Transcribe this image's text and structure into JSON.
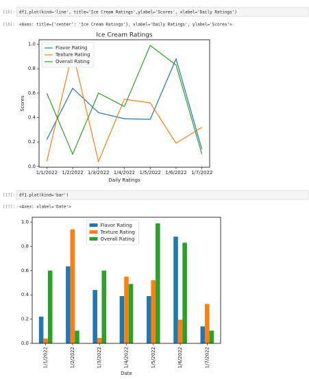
{
  "cells": [
    {
      "prompt": "[16]:",
      "code": "df1.plot(kind='line', title='Ice Cream Ratings',ylabel='Scores', xlabel='Daily Ratings')",
      "output_prompt": "[16]:",
      "output": "<Axes: title={'center': 'Ice Cream Ratings'}, xlabel='Daily Ratings', ylabel='Scores'>"
    },
    {
      "prompt": "[17]:",
      "code": "df1.plot(kind='bar')",
      "output_prompt": "[17]:",
      "output": "<Axes: xlabel='Date'>"
    }
  ],
  "chart_data": [
    {
      "type": "line",
      "title": "Ice Cream Ratings",
      "xlabel": "Daily Ratings",
      "ylabel": "Scores",
      "categories": [
        "1/1/2022",
        "1/2/2022",
        "1/3/2022",
        "1/4/2022",
        "1/5/2022",
        "1/6/2022",
        "1/7/2022"
      ],
      "series": [
        {
          "name": "Flavor Rating",
          "color": "#1f77b4",
          "values": [
            0.22,
            0.64,
            0.44,
            0.39,
            0.385,
            0.88,
            0.14
          ]
        },
        {
          "name": "Texture Rating",
          "color": "#ff7f0e",
          "values": [
            0.04,
            0.94,
            0.04,
            0.55,
            0.52,
            0.19,
            0.32
          ]
        },
        {
          "name": "Overall Rating",
          "color": "#2ca02c",
          "values": [
            0.6,
            0.1,
            0.6,
            0.49,
            0.99,
            0.83,
            0.1
          ]
        }
      ],
      "ylim": [
        -0.007,
        1.037
      ],
      "yticks": [
        {
          "value": 0,
          "label": "0.0"
        },
        0.2,
        0.4,
        0.6,
        0.8,
        {
          "value": 1,
          "label": "1.0"
        }
      ],
      "legend": "upper-left"
    },
    {
      "type": "bar",
      "xlabel": "Date",
      "categories": [
        "1/1/2022",
        "1/2/2022",
        "1/3/2022",
        "1/4/2022",
        "1/5/2022",
        "1/6/2022",
        "1/7/2022"
      ],
      "series": [
        {
          "name": "Flavor Rating",
          "color": "#1f77b4",
          "values": [
            0.22,
            0.635,
            0.44,
            0.39,
            0.39,
            0.88,
            0.14
          ]
        },
        {
          "name": "Texture Rating",
          "color": "#ff7f0e",
          "values": [
            0.04,
            0.94,
            0.045,
            0.55,
            0.52,
            0.195,
            0.325
          ]
        },
        {
          "name": "Overall Rating",
          "color": "#2ca02c",
          "values": [
            0.6,
            0.105,
            0.6,
            0.49,
            0.99,
            0.83,
            0.105
          ]
        }
      ],
      "ylim": [
        0,
        1.04
      ],
      "yticks": [
        {
          "value": 0,
          "label": "0.0"
        },
        0.2,
        0.4,
        0.6,
        0.8,
        {
          "value": 1,
          "label": "1.0"
        }
      ],
      "legend": "upper-center"
    }
  ]
}
